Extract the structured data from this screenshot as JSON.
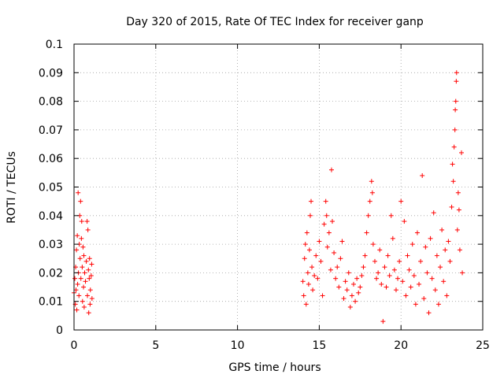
{
  "chart_data": {
    "type": "scatter",
    "title": "Day 320 of 2015, Rate Of TEC Index for receiver ganp",
    "xlabel": "GPS time / hours",
    "ylabel": "ROTI / TECUs",
    "xlim": [
      0,
      25
    ],
    "ylim": [
      0,
      0.1
    ],
    "xticks": [
      "0",
      "5",
      "10",
      "15",
      "20",
      "25"
    ],
    "yticks": [
      "0",
      "0.01",
      "0.02",
      "0.03",
      "0.04",
      "0.05",
      "0.06",
      "0.07",
      "0.08",
      "0.09",
      "0.1"
    ],
    "grid": true,
    "marker": "plus",
    "color": "#ff0000",
    "series": [
      {
        "name": "",
        "points": [
          [
            0.0,
            0.013
          ],
          [
            0.05,
            0.018
          ],
          [
            0.08,
            0.009
          ],
          [
            0.1,
            0.022
          ],
          [
            0.12,
            0.014
          ],
          [
            0.15,
            0.028
          ],
          [
            0.17,
            0.007
          ],
          [
            0.2,
            0.033
          ],
          [
            0.22,
            0.016
          ],
          [
            0.25,
            0.048
          ],
          [
            0.27,
            0.02
          ],
          [
            0.3,
            0.012
          ],
          [
            0.32,
            0.03
          ],
          [
            0.35,
            0.04
          ],
          [
            0.37,
            0.025
          ],
          [
            0.4,
            0.045
          ],
          [
            0.42,
            0.018
          ],
          [
            0.45,
            0.032
          ],
          [
            0.47,
            0.038
          ],
          [
            0.5,
            0.022
          ],
          [
            0.52,
            0.01
          ],
          [
            0.55,
            0.029
          ],
          [
            0.58,
            0.015
          ],
          [
            0.6,
            0.026
          ],
          [
            0.62,
            0.008
          ],
          [
            0.65,
            0.02
          ],
          [
            0.7,
            0.017
          ],
          [
            0.75,
            0.024
          ],
          [
            0.8,
            0.038
          ],
          [
            0.82,
            0.012
          ],
          [
            0.85,
            0.035
          ],
          [
            0.88,
            0.021
          ],
          [
            0.9,
            0.006
          ],
          [
            0.93,
            0.018
          ],
          [
            0.95,
            0.025
          ],
          [
            0.98,
            0.009
          ],
          [
            1.0,
            0.014
          ],
          [
            1.05,
            0.019
          ],
          [
            1.08,
            0.023
          ],
          [
            1.1,
            0.011
          ],
          [
            14.0,
            0.017
          ],
          [
            14.05,
            0.012
          ],
          [
            14.1,
            0.025
          ],
          [
            14.15,
            0.03
          ],
          [
            14.2,
            0.009
          ],
          [
            14.25,
            0.034
          ],
          [
            14.3,
            0.02
          ],
          [
            14.35,
            0.016
          ],
          [
            14.4,
            0.028
          ],
          [
            14.45,
            0.04
          ],
          [
            14.5,
            0.045
          ],
          [
            14.55,
            0.022
          ],
          [
            14.6,
            0.014
          ],
          [
            14.7,
            0.019
          ],
          [
            14.8,
            0.026
          ],
          [
            14.9,
            0.018
          ],
          [
            15.0,
            0.031
          ],
          [
            15.1,
            0.024
          ],
          [
            15.2,
            0.012
          ],
          [
            15.3,
            0.037
          ],
          [
            15.4,
            0.045
          ],
          [
            15.45,
            0.04
          ],
          [
            15.5,
            0.029
          ],
          [
            15.6,
            0.034
          ],
          [
            15.7,
            0.021
          ],
          [
            15.75,
            0.056
          ],
          [
            15.8,
            0.038
          ],
          [
            15.9,
            0.027
          ],
          [
            16.0,
            0.018
          ],
          [
            16.1,
            0.022
          ],
          [
            16.2,
            0.015
          ],
          [
            16.3,
            0.025
          ],
          [
            16.4,
            0.031
          ],
          [
            16.5,
            0.011
          ],
          [
            16.6,
            0.017
          ],
          [
            16.7,
            0.014
          ],
          [
            16.8,
            0.02
          ],
          [
            16.9,
            0.008
          ],
          [
            17.0,
            0.012
          ],
          [
            17.1,
            0.016
          ],
          [
            17.2,
            0.01
          ],
          [
            17.3,
            0.018
          ],
          [
            17.4,
            0.013
          ],
          [
            17.5,
            0.015
          ],
          [
            17.6,
            0.019
          ],
          [
            17.7,
            0.022
          ],
          [
            17.8,
            0.026
          ],
          [
            17.9,
            0.034
          ],
          [
            18.0,
            0.04
          ],
          [
            18.1,
            0.045
          ],
          [
            18.2,
            0.052
          ],
          [
            18.25,
            0.048
          ],
          [
            18.3,
            0.03
          ],
          [
            18.4,
            0.024
          ],
          [
            18.5,
            0.018
          ],
          [
            18.6,
            0.02
          ],
          [
            18.7,
            0.028
          ],
          [
            18.8,
            0.016
          ],
          [
            18.9,
            0.003
          ],
          [
            19.0,
            0.022
          ],
          [
            19.1,
            0.015
          ],
          [
            19.2,
            0.026
          ],
          [
            19.3,
            0.019
          ],
          [
            19.4,
            0.04
          ],
          [
            19.5,
            0.032
          ],
          [
            19.6,
            0.021
          ],
          [
            19.7,
            0.014
          ],
          [
            19.8,
            0.018
          ],
          [
            19.9,
            0.024
          ],
          [
            20.0,
            0.045
          ],
          [
            20.1,
            0.017
          ],
          [
            20.2,
            0.038
          ],
          [
            20.3,
            0.012
          ],
          [
            20.4,
            0.026
          ],
          [
            20.5,
            0.021
          ],
          [
            20.6,
            0.015
          ],
          [
            20.7,
            0.03
          ],
          [
            20.8,
            0.019
          ],
          [
            20.9,
            0.009
          ],
          [
            21.0,
            0.034
          ],
          [
            21.1,
            0.016
          ],
          [
            21.2,
            0.024
          ],
          [
            21.3,
            0.054
          ],
          [
            21.4,
            0.011
          ],
          [
            21.5,
            0.029
          ],
          [
            21.6,
            0.02
          ],
          [
            21.7,
            0.006
          ],
          [
            21.8,
            0.032
          ],
          [
            21.9,
            0.018
          ],
          [
            22.0,
            0.041
          ],
          [
            22.1,
            0.014
          ],
          [
            22.2,
            0.026
          ],
          [
            22.3,
            0.009
          ],
          [
            22.4,
            0.022
          ],
          [
            22.5,
            0.035
          ],
          [
            22.6,
            0.017
          ],
          [
            22.7,
            0.028
          ],
          [
            22.8,
            0.012
          ],
          [
            22.9,
            0.031
          ],
          [
            23.0,
            0.024
          ],
          [
            23.1,
            0.043
          ],
          [
            23.15,
            0.058
          ],
          [
            23.2,
            0.052
          ],
          [
            23.25,
            0.064
          ],
          [
            23.3,
            0.07
          ],
          [
            23.32,
            0.077
          ],
          [
            23.35,
            0.08
          ],
          [
            23.38,
            0.087
          ],
          [
            23.4,
            0.09
          ],
          [
            23.45,
            0.035
          ],
          [
            23.5,
            0.048
          ],
          [
            23.55,
            0.042
          ],
          [
            23.6,
            0.028
          ],
          [
            23.7,
            0.062
          ],
          [
            23.75,
            0.02
          ]
        ]
      }
    ]
  }
}
